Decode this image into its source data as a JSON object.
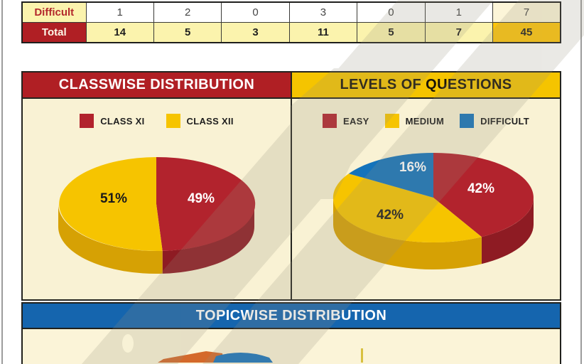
{
  "summary_table": {
    "rows": [
      {
        "label": "Difficult",
        "values": [
          "1",
          "2",
          "0",
          "3",
          "0",
          "1",
          "7"
        ]
      },
      {
        "label": "Total",
        "values": [
          "14",
          "5",
          "3",
          "11",
          "5",
          "7",
          "45"
        ]
      }
    ]
  },
  "panels": {
    "classwise": {
      "title": "CLASSWISE DISTRIBUTION"
    },
    "levels": {
      "title": "LEVELS OF QUESTIONS"
    },
    "topicwise": {
      "title": "TOPICWISE DISTRIBUTION"
    }
  },
  "theme": {
    "brick_red": "#B01F24",
    "gold": "#F5C400",
    "blue": "#1565AE",
    "cream_panel": "#F9F2D4",
    "pale_yellow_cell": "#FBF3AD",
    "gold_cell": "#FEC50B",
    "watermark_gray": "#96917D"
  },
  "chart_data": [
    {
      "type": "pie",
      "style": "3d-pie",
      "title": "CLASSWISE DISTRIBUTION",
      "categories": [
        "CLASS XI",
        "CLASS XII"
      ],
      "values": [
        49,
        51
      ],
      "unit": "percent",
      "percent_labels": [
        "49%",
        "51%"
      ],
      "colors": [
        "#B2232D",
        "#F6C400"
      ],
      "side_colors": [
        "#8E1B23",
        "#D6A104"
      ],
      "label_text_colors": [
        "#FFFFFF",
        "#1A1A1A"
      ],
      "legend_position": "top"
    },
    {
      "type": "pie",
      "style": "3d-pie",
      "title": "LEVELS OF QUESTIONS",
      "categories": [
        "EASY",
        "MEDIUM",
        "DIFFICULT"
      ],
      "values": [
        42,
        42,
        16
      ],
      "unit": "percent",
      "percent_labels": [
        "42%",
        "42%",
        "16%"
      ],
      "colors": [
        "#B2232D",
        "#F6C400",
        "#1473BB"
      ],
      "side_colors": [
        "#8E1B23",
        "#D6A104",
        "#0F5C96"
      ],
      "label_text_colors": [
        "#FFFFFF",
        "#1A1A1A",
        "#FFFFFF"
      ],
      "legend_position": "top"
    },
    {
      "type": "pie",
      "style": "3d-pie",
      "title": "TOPICWISE DISTRIBUTION",
      "note": "chart cropped at bottom edge of screenshot; only top slivers of slices visible",
      "colors": [
        "#D4692B",
        "#1B75BC",
        "#D8C040"
      ]
    }
  ]
}
